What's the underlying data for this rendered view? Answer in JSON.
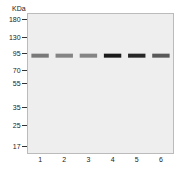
{
  "chart_data": {
    "type": "western_blot",
    "y_label": "KDa",
    "categories": [
      "1",
      "2",
      "3",
      "4",
      "5",
      "6"
    ],
    "values": [
      92,
      92,
      92,
      92,
      92,
      92
    ],
    "intensity": [
      0.55,
      0.5,
      0.5,
      1,
      0.95,
      0.7
    ],
    "log": "y",
    "ylim": [
      15,
      200
    ],
    "yticks": [
      180,
      130,
      95,
      70,
      55,
      35,
      25,
      17
    ],
    "color": "#1a1a1a"
  }
}
